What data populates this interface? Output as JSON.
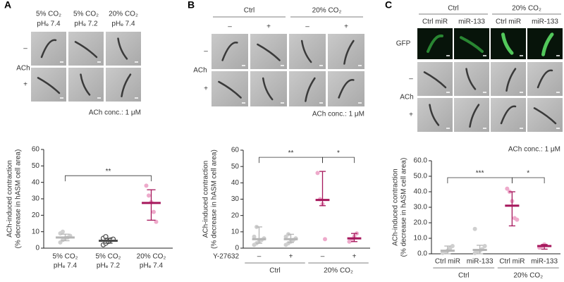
{
  "panels": [
    {
      "letter": "A",
      "column_headers": [
        [
          "5% CO₂",
          "pHₑ 7.4"
        ],
        [
          "5% CO₂",
          "pHₑ 7.2"
        ],
        [
          "20% CO₂",
          "pHₑ 7.4"
        ]
      ],
      "row_labels": [
        "–",
        "+"
      ],
      "row_title": "ACh",
      "note": "ACh conc.: 1 μM"
    },
    {
      "letter": "B",
      "group_headers": [
        "Ctrl",
        "20% CO₂"
      ],
      "column_headers": [
        "–",
        "+",
        "–",
        "+"
      ],
      "row_labels": [
        "–",
        "+"
      ],
      "row_title": "ACh",
      "note": "ACh conc.: 1 μM"
    },
    {
      "letter": "C",
      "group_headers": [
        "Ctrl",
        "20% CO₂"
      ],
      "column_headers": [
        "Ctrl miR",
        "miR-133",
        "Ctrl miR",
        "miR-133"
      ],
      "row_labels": [
        "GFP",
        "–",
        "+"
      ],
      "row_title": "ACh",
      "note": "ACh conc.: 1 μM"
    }
  ],
  "chart_data": [
    {
      "type": "dotplot",
      "ylabel": [
        "ACh-induced contraction",
        "(% decrease in hASM cell area)"
      ],
      "categories": [
        [
          "5% CO₂",
          "pHₑ 7.4"
        ],
        [
          "5% CO₂",
          "pHₑ 7.2"
        ],
        [
          "20% CO₂",
          "pHₑ 7.4"
        ]
      ],
      "values": [
        6.5,
        4.5,
        27.5
      ],
      "error_bars": [
        [
          4.5,
          8.5
        ],
        [
          3,
          6
        ],
        [
          17,
          35.5
        ]
      ],
      "points": [
        [
          3.5,
          5,
          6,
          6.5,
          7.5,
          9,
          10
        ],
        [
          2,
          3,
          4,
          5,
          5.5,
          6,
          7
        ],
        [
          38,
          32,
          28,
          22,
          16
        ]
      ],
      "colors": [
        "#b5b5b5",
        "#4a4a4a",
        "#a6175c"
      ],
      "point_colors": [
        "#cfcfcf",
        "#4a4a4a",
        "#eeaacb"
      ],
      "markers": [
        "filled",
        "open",
        "filled"
      ],
      "ylim": [
        0,
        60
      ],
      "yticks": [
        0,
        10,
        20,
        30,
        40,
        50,
        60
      ],
      "significance": [
        {
          "pair": [
            0,
            2
          ],
          "label": "**"
        }
      ]
    },
    {
      "type": "dotplot",
      "ylabel": [
        "ACh-induced contraction",
        "(% decrease in hASM cell area)"
      ],
      "factor": "Y-27632",
      "categories": [
        "–",
        "+",
        "–",
        "+"
      ],
      "groups": [
        "Ctrl",
        "20% CO₂"
      ],
      "values": [
        5.5,
        5.5,
        29.5,
        6
      ],
      "error_bars": [
        [
          3,
          13
        ],
        [
          3.5,
          8.5
        ],
        [
          26,
          47
        ],
        [
          4,
          9
        ]
      ],
      "points": [
        [
          2,
          3,
          4,
          5,
          6,
          7,
          13
        ],
        [
          2,
          3,
          4,
          5,
          6,
          7,
          8.5
        ],
        [
          46,
          30,
          27,
          5.5
        ],
        [
          4,
          5,
          7,
          9
        ]
      ],
      "colors": [
        "#b5b5b5",
        "#b5b5b5",
        "#a6175c",
        "#a6175c"
      ],
      "point_colors": [
        "#cfcfcf",
        "#cfcfcf",
        "#eeaacb",
        "#eeaacb"
      ],
      "markers": [
        "filled",
        "filled",
        "filled",
        "filled"
      ],
      "ylim": [
        0,
        60
      ],
      "yticks": [
        0,
        10,
        20,
        30,
        40,
        50,
        60
      ],
      "significance": [
        {
          "pair": [
            0,
            2
          ],
          "label": "**"
        },
        {
          "pair": [
            2,
            3
          ],
          "label": "*"
        }
      ]
    },
    {
      "type": "dotplot",
      "ylabel": [
        "ACh-induced contraction",
        "(% decrease in hASM cell area)"
      ],
      "categories": [
        "Ctrl miR",
        "miR-133",
        "Ctrl miR",
        "miR-133"
      ],
      "groups": [
        "Ctrl",
        "20% CO₂"
      ],
      "values": [
        2,
        2.5,
        31,
        5
      ],
      "error_bars": [
        [
          0,
          5
        ],
        [
          0,
          5.5
        ],
        [
          18,
          40
        ],
        [
          3,
          6
        ]
      ],
      "points": [
        [
          0.5,
          1,
          2,
          3.5,
          5
        ],
        [
          0.5,
          1.5,
          2,
          3,
          5,
          16
        ],
        [
          42,
          40,
          34,
          23,
          22
        ],
        [
          4,
          5,
          6
        ]
      ],
      "colors": [
        "#b5b5b5",
        "#b5b5b5",
        "#a6175c",
        "#a6175c"
      ],
      "point_colors": [
        "#cfcfcf",
        "#cfcfcf",
        "#eeaacb",
        "#eeaacb"
      ],
      "markers": [
        "filled",
        "filled",
        "filled",
        "filled"
      ],
      "ylim": [
        0,
        60
      ],
      "yticks": [
        {
          "value": 0,
          "label": "0.0"
        },
        {
          "value": 10,
          "label": "10.0"
        },
        {
          "value": 20,
          "label": "20.0"
        },
        {
          "value": 30,
          "label": "30.0"
        },
        {
          "value": 40,
          "label": "40.0"
        },
        {
          "value": 50,
          "label": "50.0"
        },
        {
          "value": 60,
          "label": "60.0"
        }
      ],
      "significance": [
        {
          "pair": [
            0,
            2
          ],
          "label": "***"
        },
        {
          "pair": [
            2,
            3
          ],
          "label": "*"
        }
      ]
    }
  ]
}
